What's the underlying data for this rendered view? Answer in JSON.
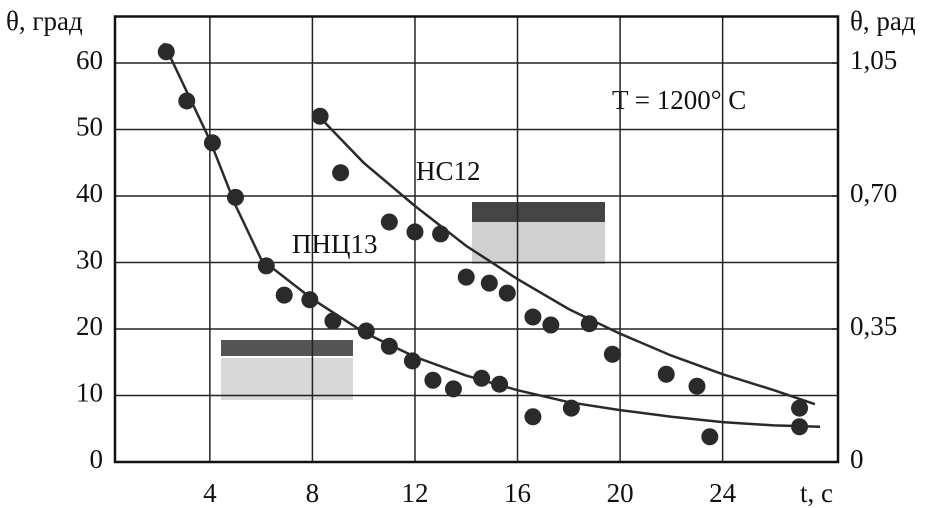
{
  "chart_data": {
    "type": "scatter",
    "left_axis_label": "θ, град",
    "right_axis_label": "θ, рад",
    "x_axis_label": "t, c",
    "annotation": "T = 1200° C",
    "xlim": [
      0.3,
      28.5
    ],
    "xticks": [
      4,
      8,
      12,
      16,
      20,
      24
    ],
    "ylim": [
      0,
      67
    ],
    "yticks": [
      0,
      10,
      20,
      30,
      40,
      50,
      60
    ],
    "y2lim": [
      0,
      1.1725
    ],
    "y2ticks": [
      0,
      {
        "value": 0.35,
        "label": "0,35"
      },
      {
        "value": 0.7,
        "label": "0,70"
      },
      {
        "value": 1.05,
        "label": "1,05"
      }
    ],
    "grid": true,
    "series": [
      {
        "name": "ПНЦ13",
        "color": "#2a2a2a",
        "x": [
          2.3,
          3.1,
          4.1,
          5.0,
          6.2,
          6.9,
          7.9,
          8.8,
          10.1,
          11.0,
          11.9,
          12.7,
          13.5,
          14.6,
          15.3,
          16.6,
          18.1,
          23.5,
          27.0
        ],
        "values": [
          61.7,
          54.3,
          48,
          39.8,
          29.5,
          25.1,
          24.4,
          21.2,
          19.7,
          17.4,
          15.2,
          12.3,
          11,
          12.6,
          11.7,
          6.8,
          8.1,
          3.8,
          5.3
        ],
        "fit_x": [
          2.2,
          4,
          5,
          6,
          8,
          10,
          12,
          14,
          16,
          18,
          20,
          22,
          24,
          26,
          27.8
        ],
        "fit_values": [
          63,
          48.4,
          38.6,
          30.5,
          24.5,
          19.5,
          15.8,
          13,
          10.8,
          9,
          7.8,
          6.8,
          6,
          5.5,
          5.3
        ]
      },
      {
        "name": "НС12",
        "color": "#2a2a2a",
        "x": [
          8.3,
          9.1,
          11.0,
          12.0,
          13.0,
          14.0,
          14.9,
          15.6,
          16.6,
          17.3,
          18.8,
          19.7,
          21.8,
          23.0,
          27.0
        ],
        "values": [
          52,
          43.5,
          36.1,
          34.6,
          34.3,
          27.8,
          26.9,
          25.4,
          21.8,
          20.6,
          20.8,
          16.2,
          13.2,
          11.4,
          8.1
        ],
        "fit_x": [
          8.5,
          10,
          12,
          14,
          16,
          18,
          20,
          22,
          24,
          26,
          27.6
        ],
        "fit_values": [
          51,
          45,
          38.5,
          32.5,
          27.5,
          23,
          19.3,
          16,
          13.2,
          10.8,
          8.7
        ]
      }
    ]
  }
}
